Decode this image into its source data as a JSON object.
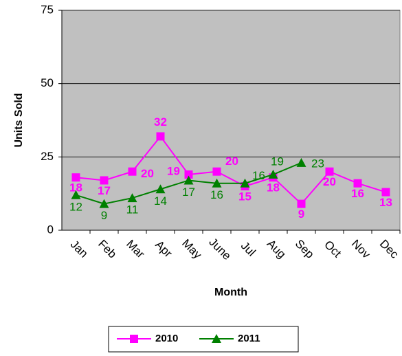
{
  "chart_data": {
    "type": "line",
    "x_label": "Month",
    "y_label": "Units Sold",
    "categories": [
      "Jan",
      "Feb",
      "Mar",
      "Apr",
      "May",
      "June",
      "Jul",
      "Aug",
      "Sep",
      "Oct",
      "Nov",
      "Dec"
    ],
    "series": [
      {
        "name": "2010",
        "color": "#ff00ff",
        "marker": "square",
        "values": [
          18,
          17,
          20,
          32,
          19,
          20,
          15,
          18,
          9,
          20,
          16,
          13
        ]
      },
      {
        "name": "2011",
        "color": "#008000",
        "marker": "triangle",
        "values": [
          12,
          9,
          11,
          14,
          17,
          16,
          16,
          19,
          23,
          null,
          null,
          null
        ]
      }
    ],
    "ylim": [
      0,
      75
    ],
    "yticks": [
      0,
      25,
      50,
      75
    ],
    "grid": true,
    "legend": "bottom"
  }
}
